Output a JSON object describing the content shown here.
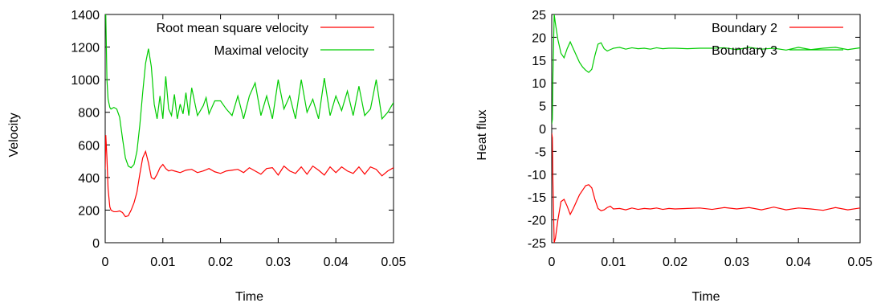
{
  "chart_data": [
    {
      "type": "line",
      "xlabel": "Time",
      "ylabel": "Velocity",
      "xlim": [
        0,
        0.05
      ],
      "ylim": [
        0,
        1400
      ],
      "xticks": [
        0,
        0.01,
        0.02,
        0.03,
        0.04,
        0.05
      ],
      "xtick_labels": [
        "0",
        "0.01",
        "0.02",
        "0.03",
        "0.04",
        "0.05"
      ],
      "yticks": [
        0,
        200,
        400,
        600,
        800,
        1000,
        1200,
        1400
      ],
      "ytick_labels": [
        "0",
        "200",
        "400",
        "600",
        "800",
        "1000",
        "1200",
        "1400"
      ],
      "legend_position": "top-right",
      "series": [
        {
          "name": "Root mean square velocity",
          "color": "#ff0000",
          "x": [
            0,
            0.0001,
            0.0003,
            0.0005,
            0.0008,
            0.001,
            0.0015,
            0.002,
            0.0025,
            0.003,
            0.0035,
            0.004,
            0.0045,
            0.005,
            0.0055,
            0.006,
            0.0065,
            0.007,
            0.0075,
            0.008,
            0.0085,
            0.009,
            0.0095,
            0.01,
            0.0105,
            0.011,
            0.0115,
            0.012,
            0.013,
            0.014,
            0.015,
            0.016,
            0.017,
            0.018,
            0.019,
            0.02,
            0.021,
            0.022,
            0.023,
            0.024,
            0.025,
            0.026,
            0.027,
            0.028,
            0.029,
            0.03,
            0.031,
            0.032,
            0.033,
            0.034,
            0.035,
            0.036,
            0.037,
            0.038,
            0.039,
            0.04,
            0.041,
            0.042,
            0.043,
            0.044,
            0.045,
            0.046,
            0.047,
            0.048,
            0.049,
            0.05
          ],
          "y": [
            450,
            660,
            520,
            330,
            220,
            200,
            190,
            190,
            195,
            185,
            160,
            165,
            200,
            245,
            310,
            420,
            520,
            560,
            490,
            400,
            390,
            420,
            460,
            480,
            455,
            440,
            445,
            440,
            430,
            445,
            450,
            430,
            440,
            455,
            435,
            425,
            440,
            445,
            450,
            430,
            460,
            440,
            420,
            455,
            460,
            415,
            470,
            440,
            425,
            465,
            420,
            470,
            445,
            415,
            465,
            430,
            465,
            440,
            425,
            465,
            420,
            465,
            450,
            410,
            440,
            460
          ]
        },
        {
          "name": "Maximal velocity",
          "color": "#00cc00",
          "x": [
            0,
            0.0001,
            0.0003,
            0.0005,
            0.0008,
            0.001,
            0.0015,
            0.002,
            0.0025,
            0.003,
            0.0035,
            0.004,
            0.0045,
            0.005,
            0.0055,
            0.006,
            0.0065,
            0.007,
            0.0075,
            0.008,
            0.0085,
            0.009,
            0.0095,
            0.01,
            0.0105,
            0.011,
            0.0115,
            0.012,
            0.0125,
            0.013,
            0.0135,
            0.014,
            0.0145,
            0.015,
            0.016,
            0.017,
            0.0175,
            0.018,
            0.019,
            0.02,
            0.021,
            0.022,
            0.023,
            0.024,
            0.025,
            0.026,
            0.027,
            0.028,
            0.029,
            0.03,
            0.031,
            0.032,
            0.033,
            0.034,
            0.035,
            0.036,
            0.037,
            0.038,
            0.039,
            0.04,
            0.041,
            0.042,
            0.043,
            0.044,
            0.045,
            0.046,
            0.047,
            0.048,
            0.049,
            0.05
          ],
          "y": [
            1400,
            1400,
            1000,
            880,
            830,
            820,
            830,
            820,
            770,
            640,
            520,
            470,
            460,
            480,
            560,
            720,
            920,
            1100,
            1190,
            1080,
            850,
            760,
            900,
            760,
            1020,
            820,
            780,
            910,
            760,
            850,
            790,
            920,
            780,
            950,
            780,
            840,
            890,
            790,
            870,
            870,
            820,
            780,
            900,
            760,
            900,
            980,
            780,
            900,
            760,
            1000,
            820,
            900,
            760,
            1000,
            800,
            880,
            760,
            1010,
            780,
            900,
            810,
            930,
            780,
            960,
            780,
            820,
            1000,
            760,
            800,
            860
          ]
        }
      ]
    },
    {
      "type": "line",
      "xlabel": "Time",
      "ylabel": "Heat flux",
      "xlim": [
        0,
        0.05
      ],
      "ylim": [
        -25,
        25
      ],
      "xticks": [
        0,
        0.01,
        0.02,
        0.03,
        0.04,
        0.05
      ],
      "xtick_labels": [
        "0",
        "0.01",
        "0.02",
        "0.03",
        "0.04",
        "0.05"
      ],
      "yticks": [
        -25,
        -20,
        -15,
        -10,
        -5,
        0,
        5,
        10,
        15,
        20,
        25
      ],
      "ytick_labels": [
        "-25",
        "-20",
        "-15",
        "-10",
        "-5",
        "0",
        "5",
        "10",
        "15",
        "20",
        "25"
      ],
      "legend_position": "top-right",
      "series": [
        {
          "name": "Boundary 2",
          "color": "#ff0000",
          "x": [
            0,
            0.0001,
            0.0002,
            0.0004,
            0.0006,
            0.001,
            0.0015,
            0.002,
            0.0025,
            0.003,
            0.0035,
            0.004,
            0.0045,
            0.005,
            0.0055,
            0.006,
            0.0065,
            0.007,
            0.0075,
            0.008,
            0.0085,
            0.009,
            0.0095,
            0.01,
            0.011,
            0.012,
            0.013,
            0.014,
            0.015,
            0.016,
            0.017,
            0.018,
            0.019,
            0.02,
            0.022,
            0.024,
            0.026,
            0.028,
            0.03,
            0.032,
            0.034,
            0.036,
            0.038,
            0.04,
            0.042,
            0.044,
            0.046,
            0.048,
            0.05
          ],
          "y": [
            -1,
            -2,
            -12,
            -25,
            -24,
            -20,
            -16,
            -15.5,
            -17,
            -18.8,
            -17.5,
            -16,
            -14.5,
            -13.5,
            -12.5,
            -12.3,
            -13,
            -15.5,
            -17.5,
            -18,
            -17.8,
            -17.3,
            -17,
            -17.6,
            -17.5,
            -17.8,
            -17.4,
            -17.7,
            -17.5,
            -17.6,
            -17.4,
            -17.7,
            -17.5,
            -17.6,
            -17.5,
            -17.4,
            -17.7,
            -17.3,
            -17.6,
            -17.3,
            -17.8,
            -17.2,
            -17.8,
            -17.4,
            -17.6,
            -17.9,
            -17.3,
            -17.8,
            -17.4
          ]
        },
        {
          "name": "Boundary 3",
          "color": "#00cc00",
          "x": [
            0,
            0.0001,
            0.0002,
            0.0004,
            0.0006,
            0.001,
            0.0015,
            0.002,
            0.0025,
            0.003,
            0.0035,
            0.004,
            0.0045,
            0.005,
            0.0055,
            0.006,
            0.0065,
            0.007,
            0.0075,
            0.008,
            0.0085,
            0.009,
            0.0095,
            0.01,
            0.011,
            0.012,
            0.013,
            0.014,
            0.015,
            0.016,
            0.017,
            0.018,
            0.019,
            0.02,
            0.022,
            0.024,
            0.026,
            0.028,
            0.03,
            0.032,
            0.034,
            0.036,
            0.038,
            0.04,
            0.042,
            0.044,
            0.046,
            0.048,
            0.05
          ],
          "y": [
            1,
            2,
            12,
            25,
            23,
            19.5,
            16.5,
            15.5,
            17.5,
            19,
            17.5,
            16,
            14.5,
            13.5,
            12.8,
            12.3,
            13,
            16,
            18.5,
            18.8,
            17.5,
            17,
            17.3,
            17.6,
            17.8,
            17.4,
            17.7,
            17.5,
            17.6,
            17.4,
            17.7,
            17.5,
            17.6,
            17.6,
            17.5,
            17.6,
            17.6,
            17.7,
            17.3,
            17.8,
            17.4,
            17.6,
            17.2,
            17.8,
            17.3,
            17.6,
            17.8,
            17.3,
            17.7
          ]
        }
      ]
    }
  ]
}
